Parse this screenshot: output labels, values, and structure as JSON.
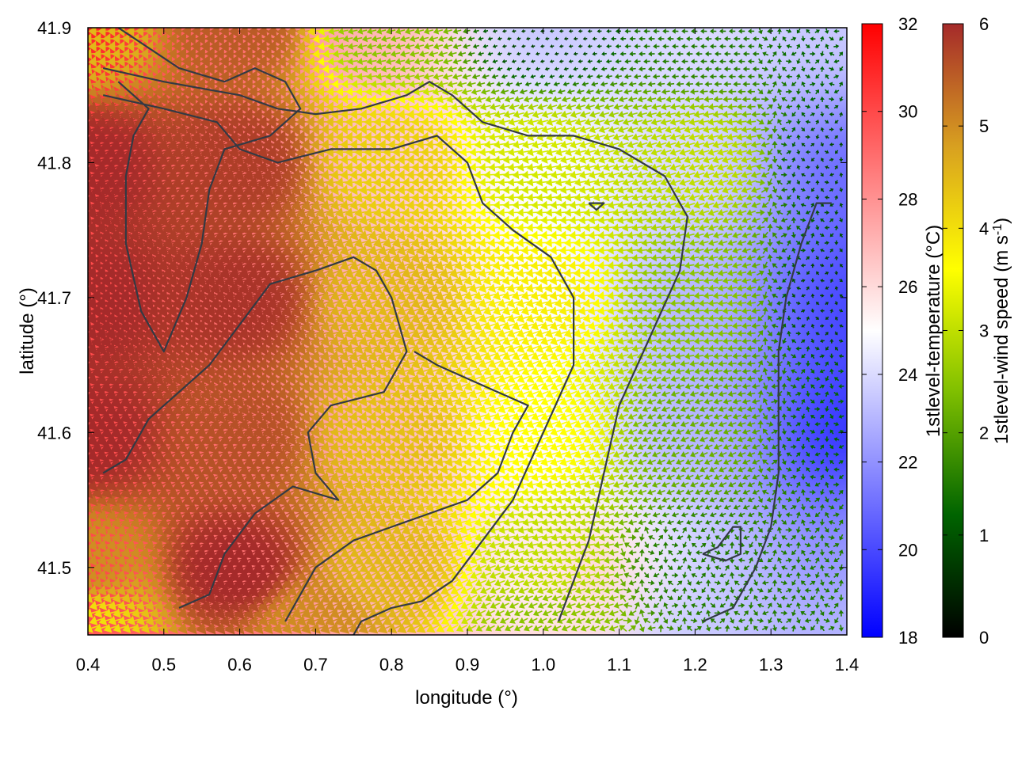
{
  "chart_data": {
    "type": "heatmap",
    "title": "",
    "xlabel": "longitude (°)",
    "ylabel": "latitude (°)",
    "xlim": [
      0.4,
      1.4
    ],
    "ylim": [
      41.45,
      41.9
    ],
    "xticks": [
      "0.4",
      "0.5",
      "0.6",
      "0.7",
      "0.8",
      "0.9",
      "1.0",
      "1.1",
      "1.2",
      "1.3",
      "1.4"
    ],
    "yticks": [
      "41.5",
      "41.6",
      "41.7",
      "41.8",
      "41.9"
    ],
    "grid": false,
    "temperature_colorbar": {
      "label_html": "1stlevel-temperature (°C)",
      "range": [
        18,
        32
      ],
      "ticks": [
        "18",
        "20",
        "22",
        "24",
        "26",
        "28",
        "30",
        "32"
      ],
      "colors": [
        "#0000ff",
        "#ffffff",
        "#ff0000"
      ]
    },
    "wind_colorbar": {
      "label_prefix": "1stlevel-wind speed (m s",
      "label_sup": "-1",
      "label_suffix": ")",
      "range": [
        0,
        6
      ],
      "ticks": [
        "0",
        "1",
        "2",
        "3",
        "4",
        "5",
        "6"
      ],
      "colors": [
        "#000000",
        "#006400",
        "#7fbf00",
        "#ffff00",
        "#d8a020",
        "#a52a2a"
      ]
    },
    "temperature_field": [
      {
        "lon": 0.4,
        "lat": 41.9,
        "value": 31
      },
      {
        "lon": 0.6,
        "lat": 41.9,
        "value": 29
      },
      {
        "lon": 0.8,
        "lat": 41.9,
        "value": 27
      },
      {
        "lon": 1.0,
        "lat": 41.9,
        "value": 23.5
      },
      {
        "lon": 1.2,
        "lat": 41.9,
        "value": 24
      },
      {
        "lon": 1.4,
        "lat": 41.9,
        "value": 23.5
      },
      {
        "lon": 0.4,
        "lat": 41.8,
        "value": 30
      },
      {
        "lon": 0.6,
        "lat": 41.8,
        "value": 29
      },
      {
        "lon": 0.8,
        "lat": 41.8,
        "value": 26.5
      },
      {
        "lon": 1.0,
        "lat": 41.8,
        "value": 25
      },
      {
        "lon": 1.2,
        "lat": 41.8,
        "value": 24
      },
      {
        "lon": 1.4,
        "lat": 41.8,
        "value": 21
      },
      {
        "lon": 0.4,
        "lat": 41.7,
        "value": 30
      },
      {
        "lon": 0.6,
        "lat": 41.7,
        "value": 29
      },
      {
        "lon": 0.8,
        "lat": 41.7,
        "value": 27
      },
      {
        "lon": 1.0,
        "lat": 41.7,
        "value": 25
      },
      {
        "lon": 1.2,
        "lat": 41.7,
        "value": 23
      },
      {
        "lon": 1.4,
        "lat": 41.7,
        "value": 20
      },
      {
        "lon": 0.4,
        "lat": 41.6,
        "value": 30
      },
      {
        "lon": 0.6,
        "lat": 41.6,
        "value": 29
      },
      {
        "lon": 0.8,
        "lat": 41.6,
        "value": 27
      },
      {
        "lon": 1.0,
        "lat": 41.6,
        "value": 25
      },
      {
        "lon": 1.2,
        "lat": 41.6,
        "value": 23
      },
      {
        "lon": 1.4,
        "lat": 41.6,
        "value": 19.5
      },
      {
        "lon": 0.4,
        "lat": 41.5,
        "value": 30
      },
      {
        "lon": 0.6,
        "lat": 41.5,
        "value": 29
      },
      {
        "lon": 0.8,
        "lat": 41.5,
        "value": 27
      },
      {
        "lon": 1.0,
        "lat": 41.5,
        "value": 25.5
      },
      {
        "lon": 1.1,
        "lat": 41.5,
        "value": 26.5
      },
      {
        "lon": 1.2,
        "lat": 41.5,
        "value": 23.5
      },
      {
        "lon": 1.4,
        "lat": 41.5,
        "value": 22
      },
      {
        "lon": 1.2,
        "lat": 41.46,
        "value": 23.5
      },
      {
        "lon": 1.4,
        "lat": 41.46,
        "value": 23
      }
    ],
    "wind_speed_field": [
      {
        "lon": 0.4,
        "lat": 41.9,
        "value": 4.5
      },
      {
        "lon": 0.6,
        "lat": 41.9,
        "value": 5.5
      },
      {
        "lon": 0.8,
        "lat": 41.9,
        "value": 2.5
      },
      {
        "lon": 1.0,
        "lat": 41.9,
        "value": 0.8
      },
      {
        "lon": 1.2,
        "lat": 41.9,
        "value": 1.5
      },
      {
        "lon": 1.4,
        "lat": 41.9,
        "value": 1.2
      },
      {
        "lon": 0.4,
        "lat": 41.8,
        "value": 6
      },
      {
        "lon": 0.6,
        "lat": 41.8,
        "value": 5.8
      },
      {
        "lon": 0.8,
        "lat": 41.8,
        "value": 4.2
      },
      {
        "lon": 1.0,
        "lat": 41.8,
        "value": 3.2
      },
      {
        "lon": 1.2,
        "lat": 41.8,
        "value": 3
      },
      {
        "lon": 1.4,
        "lat": 41.8,
        "value": 0.9
      },
      {
        "lon": 0.4,
        "lat": 41.7,
        "value": 6
      },
      {
        "lon": 0.6,
        "lat": 41.7,
        "value": 5.9
      },
      {
        "lon": 0.8,
        "lat": 41.7,
        "value": 4.5
      },
      {
        "lon": 1.0,
        "lat": 41.7,
        "value": 3.8
      },
      {
        "lon": 1.2,
        "lat": 41.7,
        "value": 2.5
      },
      {
        "lon": 1.4,
        "lat": 41.7,
        "value": 0.8
      },
      {
        "lon": 0.4,
        "lat": 41.6,
        "value": 6
      },
      {
        "lon": 0.6,
        "lat": 41.6,
        "value": 5.6
      },
      {
        "lon": 0.8,
        "lat": 41.6,
        "value": 4.4
      },
      {
        "lon": 1.0,
        "lat": 41.6,
        "value": 3.6
      },
      {
        "lon": 1.2,
        "lat": 41.6,
        "value": 2.2
      },
      {
        "lon": 1.4,
        "lat": 41.6,
        "value": 1.2
      },
      {
        "lon": 0.4,
        "lat": 41.5,
        "value": 5
      },
      {
        "lon": 0.6,
        "lat": 41.5,
        "value": 6
      },
      {
        "lon": 0.8,
        "lat": 41.5,
        "value": 4.5
      },
      {
        "lon": 1.0,
        "lat": 41.5,
        "value": 3
      },
      {
        "lon": 1.2,
        "lat": 41.5,
        "value": 1.5
      },
      {
        "lon": 1.4,
        "lat": 41.5,
        "value": 1.5
      },
      {
        "lon": 0.4,
        "lat": 41.46,
        "value": 4
      },
      {
        "lon": 0.7,
        "lat": 41.46,
        "value": 5
      },
      {
        "lon": 1.0,
        "lat": 41.46,
        "value": 2.5
      },
      {
        "lon": 1.4,
        "lat": 41.46,
        "value": 1.5
      }
    ],
    "wind_direction": "mostly from the east / north-east (arrows pointing west-southwest); weak and variable near the east edge and the south-east corner",
    "speed_contours": [
      [
        [
          0.42,
          41.87
        ],
        [
          0.5,
          41.86
        ],
        [
          0.6,
          41.85
        ],
        [
          0.65,
          41.84
        ],
        [
          0.7,
          41.836
        ],
        [
          0.76,
          41.84
        ],
        [
          0.82,
          41.85
        ],
        [
          0.85,
          41.86
        ],
        [
          0.88,
          41.85
        ],
        [
          0.92,
          41.83
        ],
        [
          0.98,
          41.82
        ],
        [
          1.04,
          41.82
        ],
        [
          1.1,
          41.81
        ],
        [
          1.16,
          41.79
        ],
        [
          1.19,
          41.76
        ],
        [
          1.18,
          41.72
        ],
        [
          1.14,
          41.67
        ],
        [
          1.1,
          41.62
        ],
        [
          1.08,
          41.57
        ],
        [
          1.06,
          41.52
        ],
        [
          1.04,
          41.49
        ],
        [
          1.02,
          41.46
        ]
      ],
      [
        [
          0.42,
          41.85
        ],
        [
          0.5,
          41.84
        ],
        [
          0.57,
          41.83
        ],
        [
          0.6,
          41.81
        ],
        [
          0.65,
          41.8
        ],
        [
          0.72,
          41.81
        ],
        [
          0.8,
          41.81
        ],
        [
          0.86,
          41.82
        ],
        [
          0.9,
          41.8
        ],
        [
          0.92,
          41.77
        ],
        [
          0.96,
          41.75
        ],
        [
          1.01,
          41.73
        ],
        [
          1.04,
          41.7
        ],
        [
          1.04,
          41.65
        ],
        [
          1.0,
          41.6
        ],
        [
          0.96,
          41.55
        ],
        [
          0.92,
          41.52
        ],
        [
          0.88,
          41.49
        ],
        [
          0.84,
          41.475
        ],
        [
          0.8,
          41.47
        ],
        [
          0.76,
          41.46
        ],
        [
          0.75,
          41.45
        ]
      ],
      [
        [
          0.44,
          41.9
        ],
        [
          0.52,
          41.87
        ],
        [
          0.58,
          41.86
        ],
        [
          0.62,
          41.87
        ],
        [
          0.66,
          41.86
        ],
        [
          0.68,
          41.84
        ],
        [
          0.64,
          41.82
        ],
        [
          0.58,
          41.81
        ],
        [
          0.56,
          41.78
        ],
        [
          0.55,
          41.74
        ],
        [
          0.53,
          41.7
        ],
        [
          0.5,
          41.66
        ],
        [
          0.47,
          41.69
        ],
        [
          0.45,
          41.74
        ],
        [
          0.45,
          41.79
        ],
        [
          0.46,
          41.82
        ],
        [
          0.48,
          41.84
        ],
        [
          0.44,
          41.86
        ]
      ],
      [
        [
          0.42,
          41.57
        ],
        [
          0.45,
          41.58
        ],
        [
          0.48,
          41.61
        ],
        [
          0.52,
          41.63
        ],
        [
          0.56,
          41.65
        ],
        [
          0.6,
          41.68
        ],
        [
          0.64,
          41.71
        ],
        [
          0.7,
          41.72
        ],
        [
          0.75,
          41.73
        ],
        [
          0.78,
          41.72
        ],
        [
          0.8,
          41.7
        ],
        [
          0.82,
          41.66
        ],
        [
          0.79,
          41.63
        ],
        [
          0.72,
          41.62
        ],
        [
          0.69,
          41.6
        ],
        [
          0.7,
          41.57
        ],
        [
          0.73,
          41.55
        ],
        [
          0.67,
          41.56
        ],
        [
          0.62,
          41.54
        ],
        [
          0.58,
          41.51
        ],
        [
          0.56,
          41.48
        ],
        [
          0.52,
          41.47
        ]
      ],
      [
        [
          0.66,
          41.46
        ],
        [
          0.7,
          41.5
        ],
        [
          0.75,
          41.52
        ],
        [
          0.8,
          41.53
        ],
        [
          0.85,
          41.54
        ],
        [
          0.9,
          41.55
        ],
        [
          0.94,
          41.57
        ],
        [
          0.96,
          41.6
        ],
        [
          0.98,
          41.62
        ],
        [
          0.94,
          41.63
        ],
        [
          0.9,
          41.64
        ],
        [
          0.86,
          41.65
        ],
        [
          0.83,
          41.66
        ]
      ],
      [
        [
          1.21,
          41.46
        ],
        [
          1.25,
          41.47
        ],
        [
          1.28,
          41.5
        ],
        [
          1.3,
          41.53
        ],
        [
          1.31,
          41.57
        ],
        [
          1.31,
          41.62
        ],
        [
          1.31,
          41.66
        ],
        [
          1.32,
          41.7
        ],
        [
          1.34,
          41.74
        ],
        [
          1.36,
          41.77
        ],
        [
          1.38,
          41.77
        ]
      ],
      [
        [
          1.21,
          41.51
        ],
        [
          1.24,
          41.505
        ],
        [
          1.26,
          41.51
        ],
        [
          1.26,
          41.53
        ],
        [
          1.25,
          41.53
        ],
        [
          1.23,
          41.515
        ],
        [
          1.21,
          41.51
        ]
      ],
      [
        [
          1.06,
          41.77
        ],
        [
          1.08,
          41.77
        ],
        [
          1.07,
          41.765
        ],
        [
          1.06,
          41.77
        ]
      ]
    ]
  }
}
